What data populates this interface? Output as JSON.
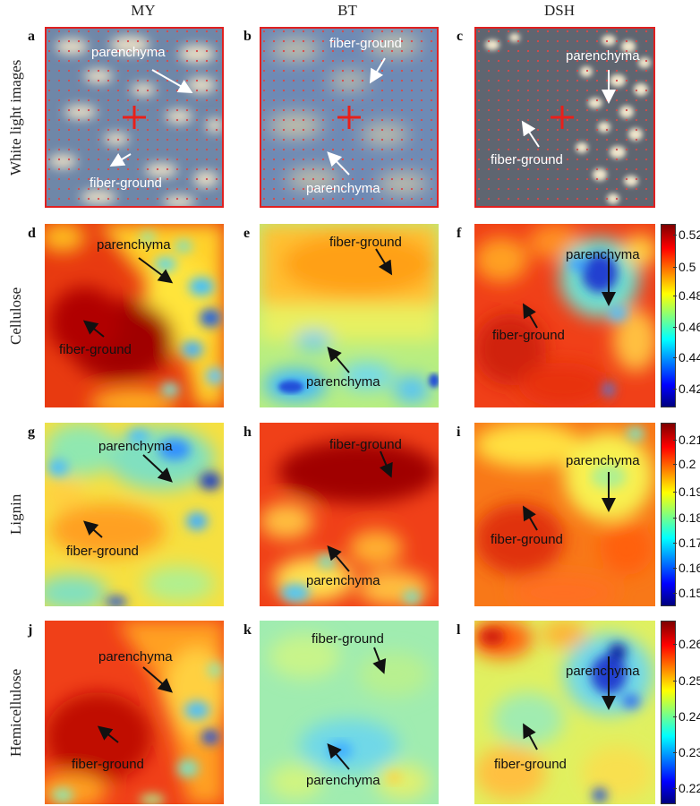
{
  "columns": [
    "MY",
    "BT",
    "DSH"
  ],
  "rows": [
    "White light images",
    "Cellulose",
    "Lignin",
    "Hemicellulose"
  ],
  "panel_letters": [
    "a",
    "b",
    "c",
    "d",
    "e",
    "f",
    "g",
    "h",
    "i",
    "j",
    "k",
    "l"
  ],
  "labels": {
    "parenchyma": "parenchyma",
    "fiber_ground": "fiber-ground"
  },
  "colorbars": {
    "cellulose": [
      "0.52",
      "0.5",
      "0.48",
      "0.46",
      "0.44",
      "0.42"
    ],
    "lignin": [
      "0.21",
      "0.2",
      "0.19",
      "0.18",
      "0.17",
      "0.16",
      "0.15"
    ],
    "hemicellulose": [
      "0.26",
      "0.25",
      "0.24",
      "0.23",
      "0.22"
    ]
  },
  "colors": {
    "frame": "#e02020",
    "cross": "#e8201a",
    "dots": "#d84040"
  }
}
